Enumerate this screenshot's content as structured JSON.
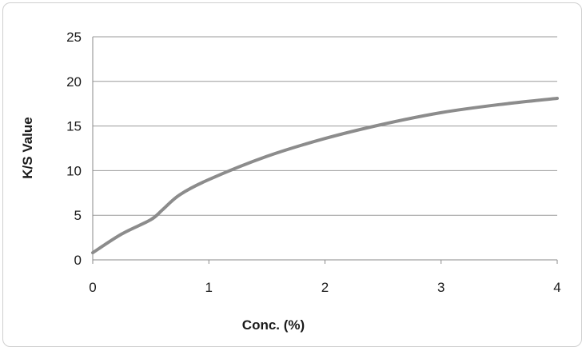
{
  "chart_data": {
    "type": "line",
    "title": "",
    "xlabel": "Conc. (%)",
    "ylabel": "K/S Value",
    "xlim": [
      0,
      4
    ],
    "ylim": [
      0,
      25
    ],
    "xticks": [
      0,
      1,
      2,
      3,
      4
    ],
    "yticks": [
      0,
      5,
      10,
      15,
      20,
      25
    ],
    "grid": "horizontal",
    "legend": "none",
    "series": [
      {
        "color": "#8c8c8c",
        "x": [
          0,
          0.25,
          0.5,
          0.6,
          0.75,
          1.0,
          1.5,
          2.0,
          2.5,
          3.0,
          3.5,
          4.0
        ],
        "y": [
          0.8,
          2.9,
          4.5,
          5.6,
          7.3,
          9.0,
          11.6,
          13.6,
          15.2,
          16.5,
          17.4,
          18.1
        ]
      }
    ]
  }
}
